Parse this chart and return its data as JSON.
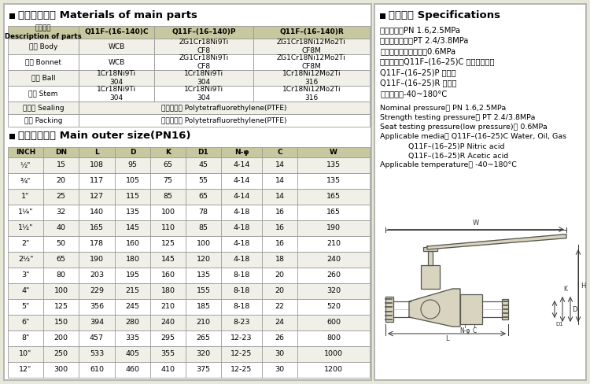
{
  "bg_color": "#e8e8d8",
  "title1": "主要零件材料 Materials of main parts",
  "title2": "主要外形尺寸 Main outer size(PN16)",
  "title3": "性能规范 Specifications",
  "parts_col_headers": [
    "零件名称\nDescription of parts",
    "Q11F–(16–140)C",
    "Q11F–(16–140)P",
    "Q11F–(16–140)R"
  ],
  "parts_data": [
    [
      "阀体 Body",
      "WCB",
      "ZG1Cr18Ni9Ti\nCF8",
      "ZG1Cr18Ni12Mo2Ti\nCF8M"
    ],
    [
      "阀盖 Bonnet",
      "WCB",
      "ZG1Cr18Ni9Ti\nCF8",
      "ZG1Cr18Ni12Mo2Ti\nCF8M"
    ],
    [
      "球体 Ball",
      "1Cr18Ni9Ti\n304",
      "1Cr18Ni9Ti\n304",
      "1Cr18Ni12Mo2Ti\n316"
    ],
    [
      "阀杆 Stem",
      "1Cr18Ni9Ti\n304",
      "1Cr18Ni9Ti\n304",
      "1Cr18Ni12Mo2Ti\n316"
    ],
    [
      "密封圈 Sealing",
      "聚四氟乙烯 Polytetrafluorethylene(PTFE)",
      null,
      null
    ],
    [
      "填料 Packing",
      "聚四氟乙烯 Polytetrafluorethylene(PTFE)",
      null,
      null
    ]
  ],
  "size_headers": [
    "INCH",
    "DN",
    "L",
    "D",
    "K",
    "D1",
    "N-φ",
    "C",
    "W"
  ],
  "size_data": [
    [
      "½\"",
      "15",
      "108",
      "95",
      "65",
      "45",
      "4-14",
      "14",
      "135"
    ],
    [
      "¾\"",
      "20",
      "117",
      "105",
      "75",
      "55",
      "4-14",
      "14",
      "135"
    ],
    [
      "1\"",
      "25",
      "127",
      "115",
      "85",
      "65",
      "4-14",
      "14",
      "165"
    ],
    [
      "1¼\"",
      "32",
      "140",
      "135",
      "100",
      "78",
      "4-18",
      "16",
      "165"
    ],
    [
      "1½\"",
      "40",
      "165",
      "145",
      "110",
      "85",
      "4-18",
      "16",
      "190"
    ],
    [
      "2\"",
      "50",
      "178",
      "160",
      "125",
      "100",
      "4-18",
      "16",
      "210"
    ],
    [
      "2½\"",
      "65",
      "190",
      "180",
      "145",
      "120",
      "4-18",
      "18",
      "240"
    ],
    [
      "3\"",
      "80",
      "203",
      "195",
      "160",
      "135",
      "8-18",
      "20",
      "260"
    ],
    [
      "4\"",
      "100",
      "229",
      "215",
      "180",
      "155",
      "8-18",
      "20",
      "320"
    ],
    [
      "5\"",
      "125",
      "356",
      "245",
      "210",
      "185",
      "8-18",
      "22",
      "520"
    ],
    [
      "6\"",
      "150",
      "394",
      "280",
      "240",
      "210",
      "8-23",
      "24",
      "600"
    ],
    [
      "8\"",
      "200",
      "457",
      "335",
      "295",
      "265",
      "12-23",
      "26",
      "800"
    ],
    [
      "10\"",
      "250",
      "533",
      "405",
      "355",
      "320",
      "12-25",
      "30",
      "1000"
    ],
    [
      "12\"",
      "300",
      "610",
      "460",
      "410",
      "375",
      "12-25",
      "30",
      "1200"
    ]
  ],
  "specs_cn": [
    [
      "公称压力：",
      "PN 1.6,2.5MPa"
    ],
    [
      "强度试验压力：",
      "PT 2.4/3.8MPa"
    ],
    [
      "低压气密封试验压力：",
      "0.6MPa"
    ],
    [
      "适用介质：",
      "Q11F–(16–25)C 水、油品、气"
    ],
    [
      "",
      "Q11F–(16–25)P 祢酸类"
    ],
    [
      "",
      "Q11F–(16–25)R 醉酸类"
    ],
    [
      "适用温度：",
      "-40~180°C"
    ]
  ],
  "specs_en": [
    "Nominal pressure： PN 1.6,2.5MPa",
    "Strength testing pressure： PT 2.4/3.8MPa",
    "Seat testing pressure(low pressure)： 0.6MPa",
    "Applicable media： Q11F–(16–25)C Water, Oil, Gas",
    "            Q11F–(16–25)P Nitric acid",
    "            Q11F–(16–25)R Acetic acid",
    "Applicable temperature： -40~180°C"
  ],
  "table_header_bg": "#c8c8a0",
  "table_alt_bg": "#f0f0e8",
  "table_white_bg": "#ffffff",
  "border_color": "#999999",
  "panel_border": "#aaaaaa"
}
